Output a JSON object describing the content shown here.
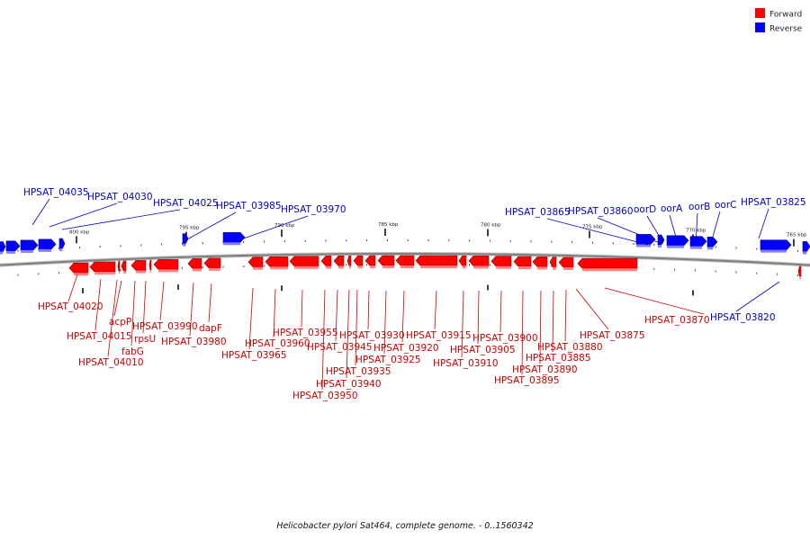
{
  "legend": [
    {
      "label": "Forward",
      "color": "#ff0000"
    },
    {
      "label": "Reverse",
      "color": "#0000ff"
    }
  ],
  "caption": "Helicobacter pylori Sat464, complete genome. - 0..1560342",
  "colors": {
    "forward": "#ff0000",
    "reverse": "#0000ff",
    "forward_label": "#cc0000",
    "reverse_label": "#0000cc",
    "backbone": "#808080"
  },
  "scale_labels": [
    "800 kbp",
    "795 kbp",
    "790 kbp",
    "785 kbp",
    "780 kbp",
    "775 kbp",
    "770 kbp",
    "765 kbp"
  ],
  "reverse_labels": [
    "HPSAT_04035",
    "HPSAT_04030",
    "HPSAT_04025",
    "HPSAT_03985",
    "HPSAT_03970",
    "HPSAT_03865",
    "HPSAT_03860",
    "oorD",
    "oorA",
    "oorB",
    "oorC",
    "HPSAT_03825",
    "HPSAT_03820"
  ],
  "forward_labels": [
    "HPSAT_04020",
    "HPSAT_04015",
    "HPSAT_04010",
    "acpP",
    "fabG",
    "rpsU",
    "HPSAT_03990",
    "HPSAT_03980",
    "dapF",
    "HPSAT_03965",
    "HPSAT_03960",
    "HPSAT_03955",
    "HPSAT_03950",
    "HPSAT_03945",
    "HPSAT_03940",
    "HPSAT_03935",
    "HPSAT_03930",
    "HPSAT_03925",
    "HPSAT_03920",
    "HPSAT_03915",
    "HPSAT_03910",
    "HPSAT_03905",
    "HPSAT_03900",
    "HPSAT_03895",
    "HPSAT_03890",
    "HPSAT_03885",
    "HPSAT_03880",
    "HPSAT_03875",
    "HPSAT_03870"
  ]
}
